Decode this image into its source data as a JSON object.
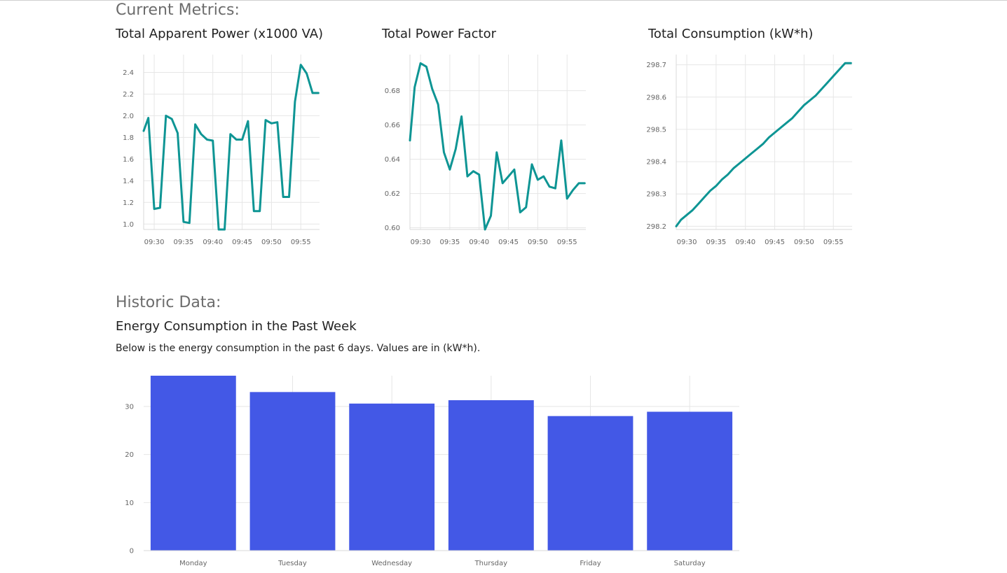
{
  "headings": {
    "current": "Current Metrics:",
    "historic": "Historic Data:",
    "weekly_title": "Energy Consumption in the Past Week",
    "weekly_desc": "Below is the energy consumption in the past 6 days. Values are in (kW*h)."
  },
  "colors": {
    "line": "#0e9594",
    "bar": "#4358e6",
    "grid": "#e6e6e6",
    "tick": "#666666"
  },
  "chart_data": [
    {
      "id": "apparent",
      "type": "line",
      "title": "Total Apparent Power (x1000 VA)",
      "x_ticks": [
        "09:30",
        "09:35",
        "09:40",
        "09:45",
        "09:50",
        "09:55"
      ],
      "x_tick_values": [
        30,
        35,
        40,
        45,
        50,
        55
      ],
      "y_ticks": [
        "1.0",
        "1.2",
        "1.4",
        "1.6",
        "1.8",
        "2.0",
        "2.2",
        "2.4"
      ],
      "y_tick_values": [
        1.0,
        1.2,
        1.4,
        1.6,
        1.8,
        2.0,
        2.2,
        2.4
      ],
      "xlim": [
        28.2,
        58.2
      ],
      "ylim": [
        0.95,
        2.5
      ],
      "x": [
        28.2,
        29,
        30,
        31,
        32,
        33,
        34,
        35,
        36,
        37,
        38,
        39,
        40,
        41,
        42,
        43,
        44,
        45,
        46,
        47,
        48,
        49,
        50,
        51,
        52,
        53,
        54,
        55,
        56,
        57,
        58
      ],
      "y": [
        1.86,
        1.98,
        1.14,
        1.15,
        2.0,
        1.97,
        1.84,
        1.02,
        1.01,
        1.92,
        1.83,
        1.78,
        1.77,
        0.95,
        0.95,
        1.83,
        1.78,
        1.78,
        1.95,
        1.12,
        1.12,
        1.96,
        1.93,
        1.94,
        1.25,
        1.25,
        2.13,
        2.47,
        2.39,
        2.21,
        2.21
      ]
    },
    {
      "id": "pf",
      "type": "line",
      "title": "Total Power Factor",
      "x_ticks": [
        "09:30",
        "09:35",
        "09:40",
        "09:45",
        "09:50",
        "09:55"
      ],
      "x_tick_values": [
        30,
        35,
        40,
        45,
        50,
        55
      ],
      "y_ticks": [
        "0.60",
        "0.62",
        "0.64",
        "0.66",
        "0.68"
      ],
      "y_tick_values": [
        0.6,
        0.62,
        0.64,
        0.66,
        0.68
      ],
      "xlim": [
        28.2,
        58.2
      ],
      "ylim": [
        0.599,
        0.697
      ],
      "x": [
        28.2,
        29,
        30,
        31,
        32,
        33,
        34,
        35,
        36,
        37,
        38,
        39,
        40,
        41,
        42,
        43,
        44,
        45,
        46,
        47,
        48,
        49,
        50,
        51,
        52,
        53,
        54,
        55,
        56,
        57,
        58
      ],
      "y": [
        0.651,
        0.682,
        0.696,
        0.694,
        0.681,
        0.672,
        0.644,
        0.634,
        0.646,
        0.665,
        0.63,
        0.633,
        0.631,
        0.599,
        0.607,
        0.644,
        0.626,
        0.63,
        0.634,
        0.609,
        0.612,
        0.637,
        0.628,
        0.63,
        0.624,
        0.623,
        0.651,
        0.617,
        0.622,
        0.626,
        0.626
      ]
    },
    {
      "id": "consumption",
      "type": "line",
      "title": "Total Consumption (kW*h)",
      "x_ticks": [
        "09:30",
        "09:35",
        "09:40",
        "09:45",
        "09:50",
        "09:55"
      ],
      "x_tick_values": [
        30,
        35,
        40,
        45,
        50,
        55
      ],
      "y_ticks": [
        "298.2",
        "298.3",
        "298.4",
        "298.5",
        "298.6",
        "298.7"
      ],
      "y_tick_values": [
        298.2,
        298.3,
        298.4,
        298.5,
        298.6,
        298.7
      ],
      "xlim": [
        28.2,
        58.2
      ],
      "ylim": [
        298.19,
        298.71
      ],
      "x": [
        28.2,
        29,
        30,
        31,
        32,
        33,
        34,
        35,
        36,
        37,
        38,
        39,
        40,
        41,
        42,
        43,
        44,
        45,
        46,
        47,
        48,
        49,
        50,
        51,
        52,
        53,
        54,
        55,
        56,
        57,
        58
      ],
      "y": [
        298.2,
        298.22,
        298.235,
        298.25,
        298.27,
        298.29,
        298.31,
        298.325,
        298.345,
        298.36,
        298.38,
        298.395,
        298.41,
        298.425,
        298.44,
        298.455,
        298.475,
        298.49,
        298.505,
        298.52,
        298.535,
        298.555,
        298.575,
        298.59,
        298.605,
        298.625,
        298.645,
        298.665,
        298.685,
        298.705,
        298.705
      ]
    },
    {
      "id": "weekly",
      "type": "bar",
      "categories": [
        "Monday",
        "Tuesday",
        "Wednesday",
        "Thursday",
        "Friday",
        "Saturday"
      ],
      "values": [
        36.4,
        33.0,
        30.6,
        31.3,
        28.0,
        28.9
      ],
      "y_ticks": [
        "0",
        "10",
        "20",
        "30"
      ],
      "y_tick_values": [
        0,
        10,
        20,
        30
      ],
      "ylim": [
        0,
        36.4
      ]
    }
  ]
}
